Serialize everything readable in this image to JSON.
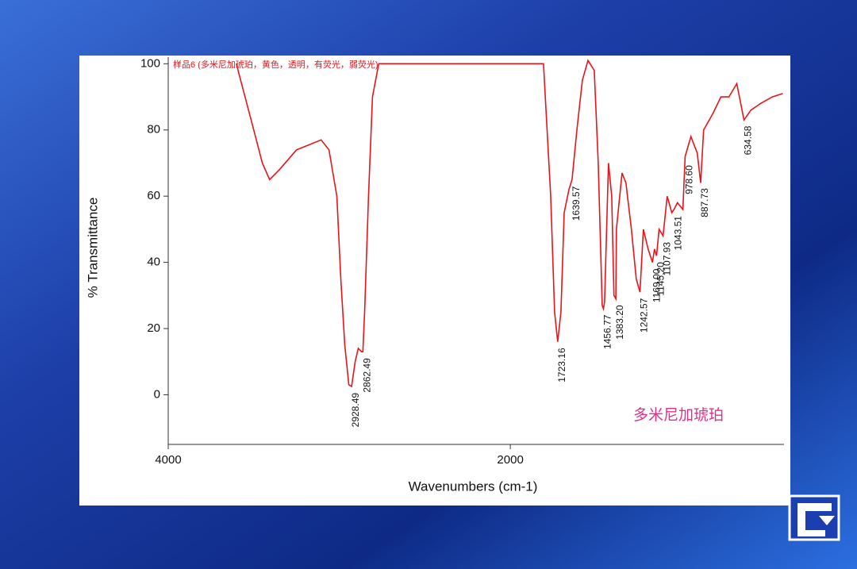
{
  "chart_data": {
    "type": "line",
    "title": "样品6 (多米尼加琥珀，黄色，透明，有荧光，弱荧光)",
    "sample_label": "多米尼加琥珀",
    "x_label": "Wavenumbers (cm-1)",
    "y_label": "% Transmittance",
    "xlim": [
      4000,
      400
    ],
    "xticks": [
      4000,
      2000
    ],
    "ylim": [
      -15,
      102
    ],
    "yticks": [
      0,
      20,
      40,
      60,
      80,
      100
    ],
    "color": "#e8141a",
    "x": [
      3602,
      3500,
      3450,
      3407,
      3350,
      3250,
      3106,
      3060,
      3014,
      2991,
      2968,
      2944,
      2928,
      2907,
      2889,
      2870,
      2862,
      2852,
      2829,
      2806,
      2769,
      1806,
      1764,
      1741,
      1723,
      1704,
      1685,
      1657,
      1639,
      1611,
      1579,
      1546,
      1509,
      1486,
      1463,
      1456,
      1449,
      1426,
      1407,
      1394,
      1383,
      1380,
      1347,
      1324,
      1292,
      1264,
      1242,
      1222,
      1194,
      1169,
      1157,
      1145,
      1130,
      1107,
      1083,
      1056,
      1043,
      1023,
      991,
      978,
      944,
      907,
      887,
      870,
      815,
      769,
      722,
      676,
      634,
      593,
      537,
      468,
      407
    ],
    "values": [
      100,
      80,
      70,
      65,
      68,
      74,
      77,
      74,
      60,
      35,
      15,
      3,
      2.5,
      10,
      14,
      13,
      13,
      25,
      60,
      90,
      100,
      100,
      60,
      25,
      16,
      25,
      55,
      62,
      65,
      80,
      95,
      101,
      98,
      70,
      27,
      26,
      28,
      70,
      60,
      30,
      29,
      50,
      67,
      64,
      50,
      35,
      31,
      50,
      44,
      40,
      44,
      42,
      50,
      48,
      60,
      55,
      56,
      58,
      56,
      72,
      78,
      73,
      64,
      80,
      85,
      90,
      90,
      94,
      83,
      86,
      88,
      90,
      91
    ],
    "annotations": [
      "2928.49",
      "2862.49",
      "1723.16",
      "1639.57",
      "1456.77",
      "1383.20",
      "1242.57",
      "1169.00",
      "1145.20",
      "1107.93",
      "1043.51",
      "978.60",
      "887.73",
      "634.58"
    ]
  }
}
